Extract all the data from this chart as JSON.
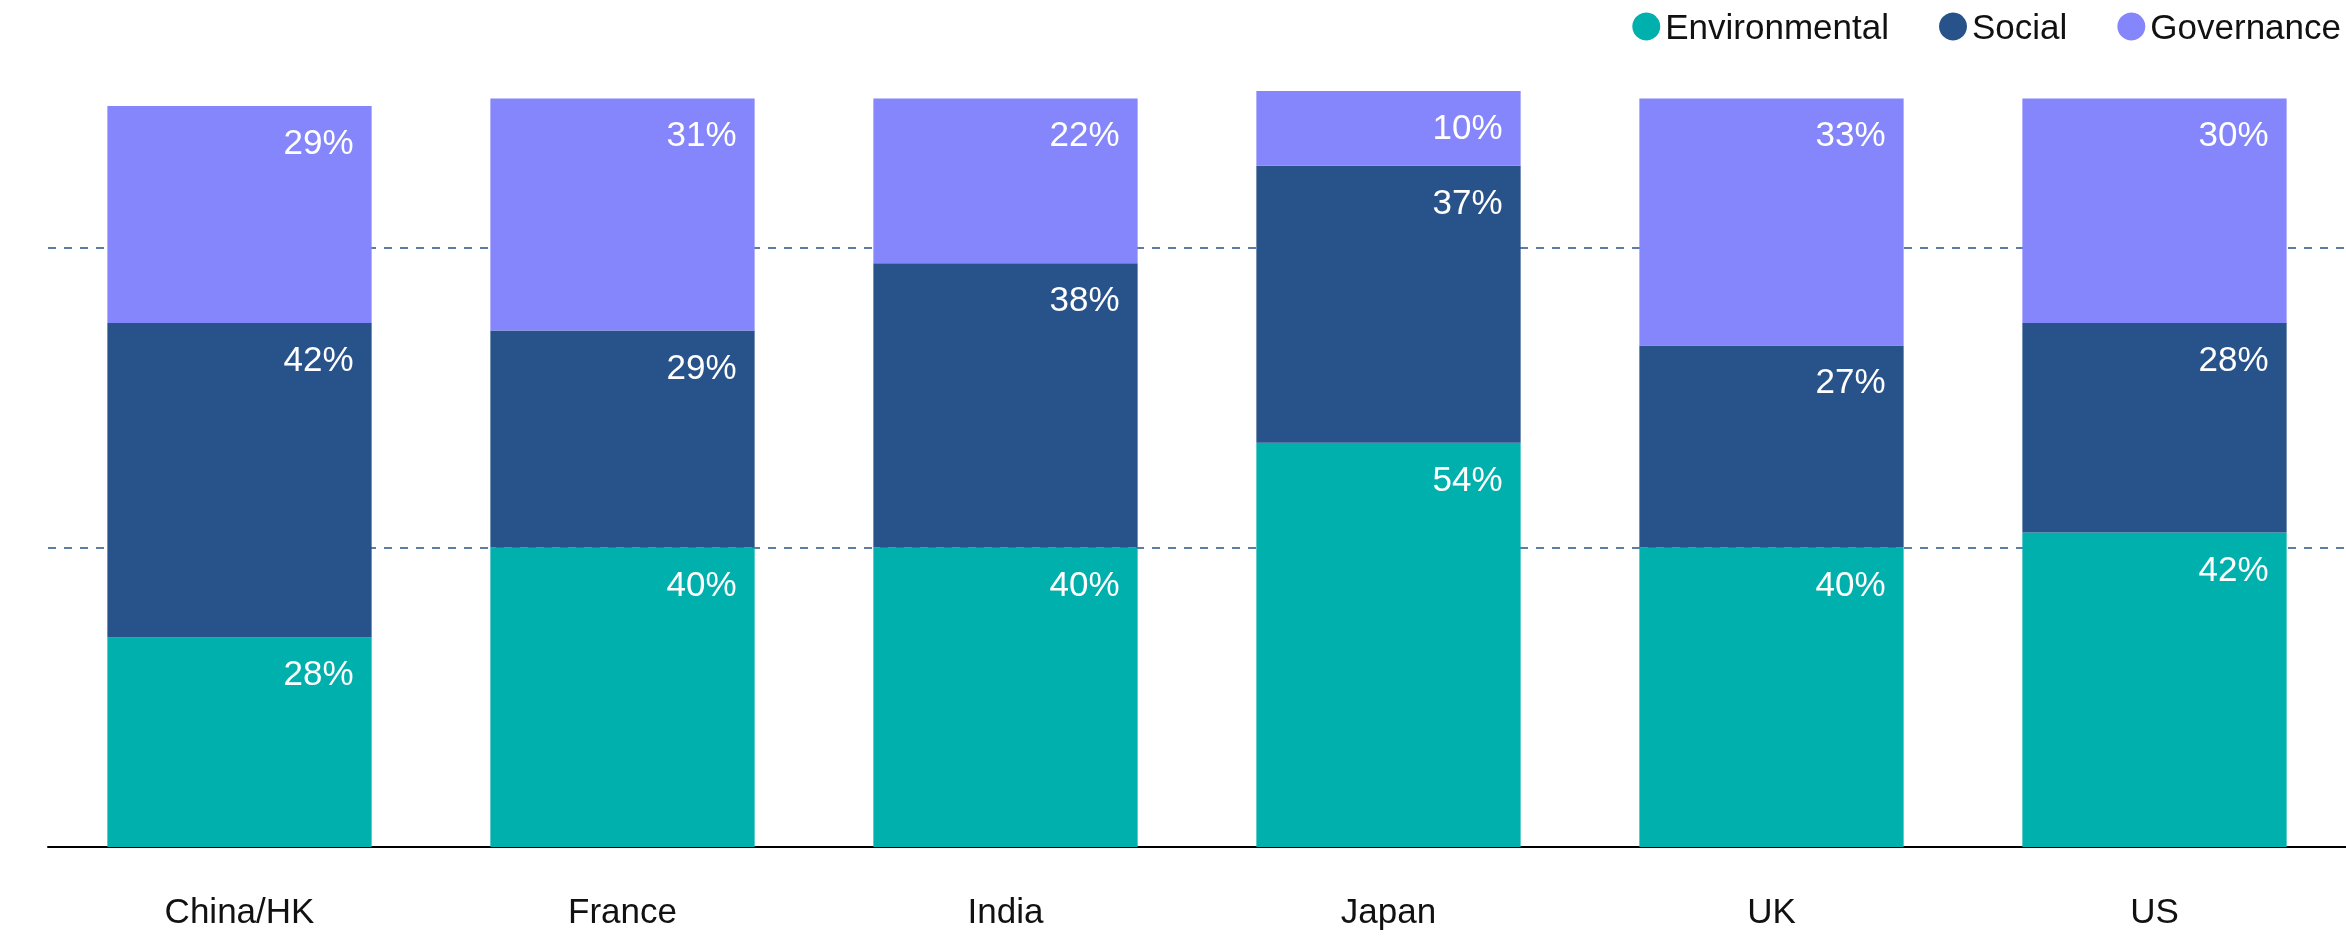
{
  "chart_data": {
    "type": "bar",
    "stacked": true,
    "categories": [
      "China/HK",
      "France",
      "India",
      "Japan",
      "UK",
      "US"
    ],
    "series": [
      {
        "name": "Environmental",
        "color": "#00b0ad",
        "values": [
          28,
          40,
          40,
          54,
          40,
          42
        ],
        "value_labels": [
          "28%",
          "40%",
          "40%",
          "54%",
          "40%",
          "42%"
        ]
      },
      {
        "name": "Social",
        "color": "#28528a",
        "values": [
          42,
          29,
          38,
          37,
          27,
          28
        ],
        "value_labels": [
          "42%",
          "29%",
          "38%",
          "37%",
          "27%",
          "28%"
        ]
      },
      {
        "name": "Governance",
        "color": "#8585fc",
        "values": [
          29,
          31,
          22,
          10,
          33,
          30
        ],
        "value_labels": [
          "29%",
          "31%",
          "22%",
          "10%",
          "33%",
          "30%"
        ]
      }
    ],
    "ref_lines": [
      {
        "axis": "y",
        "value": 40,
        "color": "#28528a",
        "line_style": "dashed"
      },
      {
        "axis": "y",
        "value": 80,
        "color": "#28528a",
        "line_style": "dashed"
      }
    ],
    "legend": "top right",
    "tick_labels": "x"
  }
}
